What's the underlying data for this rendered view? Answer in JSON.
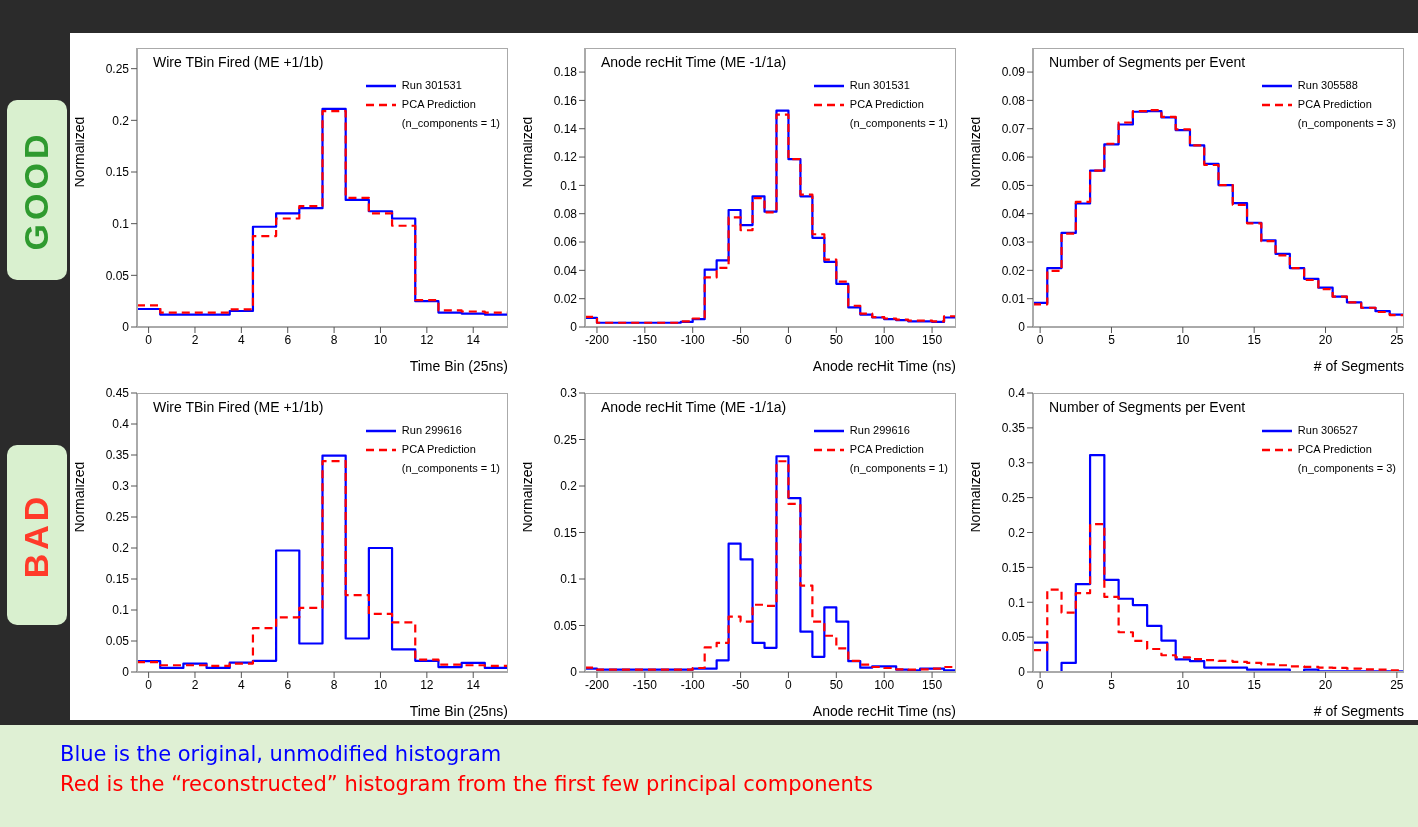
{
  "chart_data": [
    {
      "type": "histogram",
      "title": "Wire TBin Fired (ME +1/1b)",
      "xlabel": "Time Bin (25ns)",
      "ylabel": "Normalized",
      "bins": [
        -0.5,
        0.5,
        1.5,
        2.5,
        3.5,
        4.5,
        5.5,
        6.5,
        7.5,
        8.5,
        9.5,
        10.5,
        11.5,
        12.5,
        13.5,
        14.5,
        15.5
      ],
      "xlim": [
        -0.5,
        15.5
      ],
      "xticks": [
        0,
        2,
        4,
        6,
        8,
        10,
        12,
        14
      ],
      "ylim": [
        0,
        0.27
      ],
      "yticks": [
        0,
        0.05,
        0.1,
        0.15,
        0.2,
        0.25
      ],
      "legend": "top right",
      "annotations": [
        "(n_components = 1)",
        "GOOD"
      ],
      "series": [
        {
          "name": "Run 301531",
          "color": "#0000ff",
          "line_style": "solid",
          "values": [
            0.0174,
            0.012,
            0.012,
            0.012,
            0.0155,
            0.097,
            0.11,
            0.115,
            0.211,
            0.123,
            0.112,
            0.105,
            0.025,
            0.014,
            0.013,
            0.012
          ]
        },
        {
          "name": "PCA Prediction",
          "color": "#ff0000",
          "line_style": "dashed",
          "values": [
            0.021,
            0.014,
            0.014,
            0.014,
            0.017,
            0.088,
            0.105,
            0.117,
            0.209,
            0.125,
            0.11,
            0.098,
            0.026,
            0.016,
            0.015,
            0.014
          ]
        }
      ]
    },
    {
      "type": "histogram",
      "title": "Anode recHit Time (ME -1/1a)",
      "xlabel": "Anode recHit Time (ns)",
      "ylabel": "Normalized",
      "bins": [
        -212.5,
        -200,
        -187.5,
        -175,
        -162.5,
        -150,
        -137.5,
        -125,
        -112.5,
        -100,
        -87.5,
        -75,
        -62.5,
        -50,
        -37.5,
        -25,
        -12.5,
        0,
        12.5,
        25,
        37.5,
        50,
        62.5,
        75,
        87.5,
        100,
        112.5,
        125,
        137.5,
        150,
        162.5,
        175
      ],
      "xlim": [
        -212.5,
        175
      ],
      "xticks": [
        -200,
        -150,
        -100,
        -50,
        0,
        50,
        100,
        150
      ],
      "ylim": [
        0,
        0.197
      ],
      "yticks": [
        0,
        0.02,
        0.04,
        0.06,
        0.08,
        0.1,
        0.12,
        0.14,
        0.16,
        0.18
      ],
      "legend": "top right",
      "annotations": [
        "(n_components = 1)"
      ],
      "series": [
        {
          "name": "Run 301531",
          "color": "#0000ff",
          "line_style": "solid",
          "values": [
            0.0064,
            0.003,
            0.003,
            0.003,
            0.003,
            0.003,
            0.003,
            0.003,
            0.0036,
            0.0055,
            0.0405,
            0.047,
            0.0826,
            0.072,
            0.0923,
            0.0814,
            0.1528,
            0.1185,
            0.0923,
            0.063,
            0.046,
            0.0305,
            0.0138,
            0.0088,
            0.0067,
            0.0055,
            0.0048,
            0.004,
            0.004,
            0.0036,
            0.0067
          ]
        },
        {
          "name": "PCA Prediction",
          "color": "#ff0000",
          "line_style": "dashed",
          "values": [
            0.0071,
            0.003,
            0.003,
            0.003,
            0.003,
            0.003,
            0.003,
            0.003,
            0.004,
            0.006,
            0.035,
            0.0417,
            0.0774,
            0.0683,
            0.091,
            0.081,
            0.15,
            0.1185,
            0.0935,
            0.0655,
            0.0476,
            0.032,
            0.015,
            0.0095,
            0.007,
            0.006,
            0.0052,
            0.0045,
            0.0045,
            0.004,
            0.0076
          ]
        }
      ]
    },
    {
      "type": "histogram",
      "title": "Number of Segments per Event",
      "xlabel": "# of Segments",
      "ylabel": "Normalized",
      "bins": [
        -0.5,
        0.5,
        1.5,
        2.5,
        3.5,
        4.5,
        5.5,
        6.5,
        7.5,
        8.5,
        9.5,
        10.5,
        11.5,
        12.5,
        13.5,
        14.5,
        15.5,
        16.5,
        17.5,
        18.5,
        19.5,
        20.5,
        21.5,
        22.5,
        23.5,
        24.5,
        25.5
      ],
      "xlim": [
        -0.5,
        25.5
      ],
      "xticks": [
        0,
        5,
        10,
        15,
        20,
        25
      ],
      "ylim": [
        0,
        0.0985
      ],
      "yticks": [
        0,
        0.01,
        0.02,
        0.03,
        0.04,
        0.05,
        0.06,
        0.07,
        0.08,
        0.09
      ],
      "legend": "top right",
      "annotations": [
        "(n_components = 3)"
      ],
      "series": [
        {
          "name": "Run 305588",
          "color": "#0000ff",
          "line_style": "solid",
          "values": [
            0.0085,
            0.0208,
            0.0332,
            0.0436,
            0.0552,
            0.0645,
            0.0715,
            0.076,
            0.0762,
            0.074,
            0.0695,
            0.0641,
            0.0576,
            0.0501,
            0.0437,
            0.0368,
            0.0306,
            0.0258,
            0.0208,
            0.017,
            0.0139,
            0.0107,
            0.0087,
            0.0068,
            0.0056,
            0.0044
          ]
        },
        {
          "name": "PCA Prediction",
          "color": "#ff0000",
          "line_style": "dashed",
          "values": [
            0.008,
            0.0198,
            0.033,
            0.0442,
            0.0552,
            0.0647,
            0.0722,
            0.0762,
            0.0766,
            0.0742,
            0.0698,
            0.0641,
            0.0572,
            0.0501,
            0.0431,
            0.0366,
            0.0303,
            0.0253,
            0.0208,
            0.0166,
            0.0134,
            0.0107,
            0.0087,
            0.0068,
            0.0053,
            0.0042
          ]
        }
      ]
    },
    {
      "type": "histogram",
      "title": "Wire TBin Fired (ME +1/1b)",
      "xlabel": "Time Bin (25ns)",
      "ylabel": "Normalized",
      "bins": [
        -0.5,
        0.5,
        1.5,
        2.5,
        3.5,
        4.5,
        5.5,
        6.5,
        7.5,
        8.5,
        9.5,
        10.5,
        11.5,
        12.5,
        13.5,
        14.5,
        15.5
      ],
      "xlim": [
        -0.5,
        15.5
      ],
      "xticks": [
        0,
        2,
        4,
        6,
        8,
        10,
        12,
        14
      ],
      "ylim": [
        0,
        0.45
      ],
      "yticks": [
        0,
        0.05,
        0.1,
        0.15,
        0.2,
        0.25,
        0.3,
        0.35,
        0.4,
        0.45
      ],
      "legend": "top right",
      "annotations": [
        "(n_components = 1)",
        "BAD",
        "Blue is the original, unmodified histogram",
        "Red is the “reconstructed” histogram from the first few principal components"
      ],
      "series": [
        {
          "name": "Run 299616",
          "color": "#0000ff",
          "line_style": "solid",
          "values": [
            0.0174,
            0.0065,
            0.0136,
            0.0065,
            0.0152,
            0.018,
            0.196,
            0.046,
            0.349,
            0.054,
            0.2,
            0.0365,
            0.018,
            0.008,
            0.0147,
            0.0065
          ]
        },
        {
          "name": "PCA Prediction",
          "color": "#ff0000",
          "line_style": "dashed",
          "values": [
            0.0158,
            0.0109,
            0.0109,
            0.0098,
            0.0136,
            0.0707,
            0.088,
            0.1034,
            0.34,
            0.124,
            0.0936,
            0.08,
            0.02,
            0.012,
            0.0109,
            0.0098
          ]
        }
      ]
    },
    {
      "type": "histogram",
      "title": "Anode recHit Time (ME -1/1a)",
      "xlabel": "Anode recHit Time (ns)",
      "ylabel": "Normalized",
      "bins": [
        -212.5,
        -200,
        -187.5,
        -175,
        -162.5,
        -150,
        -137.5,
        -125,
        -112.5,
        -100,
        -87.5,
        -75,
        -62.5,
        -50,
        -37.5,
        -25,
        -12.5,
        0,
        12.5,
        25,
        37.5,
        50,
        62.5,
        75,
        87.5,
        100,
        112.5,
        125,
        137.5,
        150,
        162.5,
        175
      ],
      "xlim": [
        -212.5,
        175
      ],
      "xticks": [
        -200,
        -150,
        -100,
        -50,
        0,
        50,
        100,
        150
      ],
      "ylim": [
        0,
        0.3
      ],
      "yticks": [
        0,
        0.05,
        0.1,
        0.15,
        0.2,
        0.25,
        0.3
      ],
      "legend": "top right",
      "annotations": [
        "(n_components = 1)"
      ],
      "series": [
        {
          "name": "Run 299616",
          "color": "#0000ff",
          "line_style": "solid",
          "values": [
            0.0036,
            0.0025,
            0.0025,
            0.0025,
            0.0025,
            0.0025,
            0.0025,
            0.0025,
            0.0025,
            0.0036,
            0.0036,
            0.0126,
            0.138,
            0.121,
            0.0314,
            0.026,
            0.232,
            0.187,
            0.0434,
            0.0163,
            0.0694,
            0.0542,
            0.0116,
            0.0047,
            0.0061,
            0.0061,
            0.0025,
            0.0018,
            0.0036,
            0.0036,
            0.0018
          ]
        },
        {
          "name": "PCA Prediction",
          "color": "#ff0000",
          "line_style": "dashed",
          "values": [
            0.0047,
            0.0025,
            0.0025,
            0.0025,
            0.0025,
            0.0025,
            0.0025,
            0.0025,
            0.0025,
            0.0043,
            0.0264,
            0.0314,
            0.0596,
            0.0542,
            0.0723,
            0.0712,
            0.2266,
            0.1807,
            0.0929,
            0.0542,
            0.039,
            0.0253,
            0.0119,
            0.008,
            0.0054,
            0.0043,
            0.0029,
            0.0025,
            0.0029,
            0.0036,
            0.0054
          ]
        }
      ]
    },
    {
      "type": "histogram",
      "title": "Number of Segments per Event",
      "xlabel": "# of Segments",
      "ylabel": "Normalized",
      "bins": [
        -0.5,
        0.5,
        1.5,
        2.5,
        3.5,
        4.5,
        5.5,
        6.5,
        7.5,
        8.5,
        9.5,
        10.5,
        11.5,
        12.5,
        13.5,
        14.5,
        15.5,
        16.5,
        17.5,
        18.5,
        19.5,
        20.5,
        21.5,
        22.5,
        23.5,
        24.5,
        25.5
      ],
      "xlim": [
        -0.5,
        25.5
      ],
      "xticks": [
        0,
        5,
        10,
        15,
        20,
        25
      ],
      "ylim": [
        0,
        0.4
      ],
      "yticks": [
        0,
        0.05,
        0.1,
        0.15,
        0.2,
        0.25,
        0.3,
        0.35,
        0.4
      ],
      "legend": "top right",
      "annotations": [
        "(n_components = 3)"
      ],
      "series": [
        {
          "name": "Run 306527",
          "color": "#0000ff",
          "line_style": "solid",
          "values": [
            0.042,
            0,
            0.013,
            0.126,
            0.311,
            0.132,
            0.105,
            0.096,
            0.066,
            0.045,
            0.018,
            0.0155,
            0.0063,
            0.0063,
            0.0063,
            0.0034,
            0.0034,
            0.0034,
            0,
            0.0034,
            0.001,
            0.001,
            0.001,
            0.001,
            0.001,
            0.001
          ]
        },
        {
          "name": "PCA Prediction",
          "color": "#ff0000",
          "line_style": "dashed",
          "values": [
            0.0315,
            0.118,
            0.085,
            0.113,
            0.212,
            0.1077,
            0.057,
            0.0446,
            0.033,
            0.024,
            0.021,
            0.0184,
            0.017,
            0.016,
            0.0145,
            0.013,
            0.011,
            0.0097,
            0.0082,
            0.0073,
            0.0063,
            0.0058,
            0.0048,
            0.0039,
            0.0034,
            0.0024
          ]
        }
      ]
    }
  ]
}
